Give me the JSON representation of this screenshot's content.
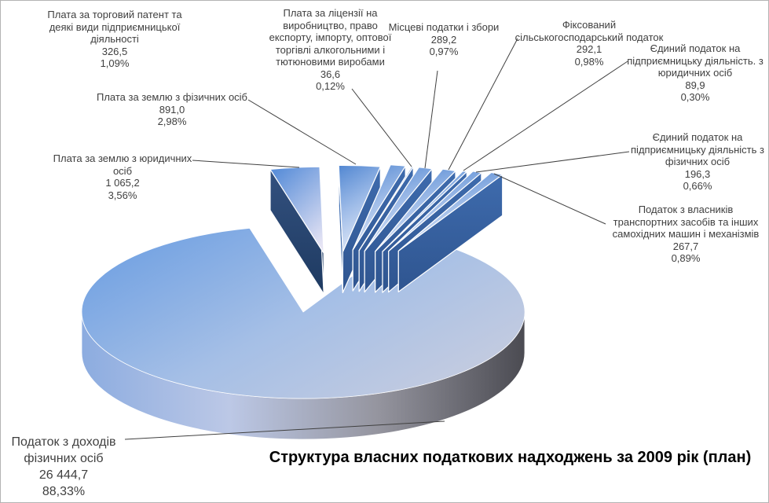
{
  "title": "Структура власних податкових надходжень за 2009 рік (план)",
  "chart_data": {
    "type": "pie",
    "style": "3d-exploded",
    "title": "Структура власних податкових надходжень за 2009 рік (план)",
    "legend": "none",
    "label_format": "name, value, percent",
    "slices": [
      {
        "label": "Плата за землю з юридичних\nосіб",
        "value": 1065.2,
        "value_label": "1 065,2",
        "pct": 3.56,
        "pct_label": "3,56%"
      },
      {
        "label": "Плата за землю з фізичних осіб",
        "value": 891.0,
        "value_label": "891,0",
        "pct": 2.98,
        "pct_label": "2,98%"
      },
      {
        "label": "Плата за торговий патент та\nдеякі види підприємницької\nдіяльності",
        "value": 326.5,
        "value_label": "326,5",
        "pct": 1.09,
        "pct_label": "1,09%"
      },
      {
        "label": "Плата за ліцензії на\nвиробництво, право\nекспорту, імпорту, оптової\nторгівлі алкогольними і\nтютюновими виробами",
        "value": 36.6,
        "value_label": "36,6",
        "pct": 0.12,
        "pct_label": "0,12%"
      },
      {
        "label": "Місцеві податки і збори",
        "value": 289.2,
        "value_label": "289,2",
        "pct": 0.97,
        "pct_label": "0,97%"
      },
      {
        "label": "Фіксований\nсільськогосподарський податок",
        "value": 292.1,
        "value_label": "292,1",
        "pct": 0.98,
        "pct_label": "0,98%"
      },
      {
        "label": "Єдиний податок на\nпідприємницьку діяльність. з\nюридичних осіб",
        "value": 89.9,
        "value_label": "89,9",
        "pct": 0.3,
        "pct_label": "0,30%"
      },
      {
        "label": "Єдиний податок на\nпідприємницьку діяльність з\nфізичних осіб",
        "value": 196.3,
        "value_label": "196,3",
        "pct": 0.66,
        "pct_label": "0,66%"
      },
      {
        "label": "Податок з власників\nтранспортних засобів та інших\nсамохідних машин і механізмів",
        "value": 267.7,
        "value_label": "267,7",
        "pct": 0.89,
        "pct_label": "0,89%"
      },
      {
        "label": "Податок з доходів\nфізичних осіб",
        "value": 26444.7,
        "value_label": "26 444,7",
        "pct": 88.33,
        "pct_label": "88,33%"
      }
    ],
    "colors": {
      "fan_side": [
        "#4C7BBE",
        "#3661A2"
      ],
      "fan_right": [
        "#3E6BAD",
        "#2F5590"
      ],
      "fan_top": [
        "#568AD3",
        "#9FBCE8",
        "#E2EAF8"
      ],
      "dark_side": [
        "#33517F",
        "#1E3A61"
      ],
      "dark_right": [
        "#2B4A7A",
        "#1E3A61"
      ],
      "dark_top": [
        "#5B8FD9",
        "#E6E4F4"
      ],
      "big_top": [
        "#6FA0E2",
        "#A5BFE6",
        "#C8CDDF"
      ],
      "skirt": [
        "#8CACE0",
        "#BCC8E6",
        "#95959F",
        "#4B4B52"
      ],
      "leader_line": "#404040",
      "text": "#3F3F3F"
    }
  }
}
